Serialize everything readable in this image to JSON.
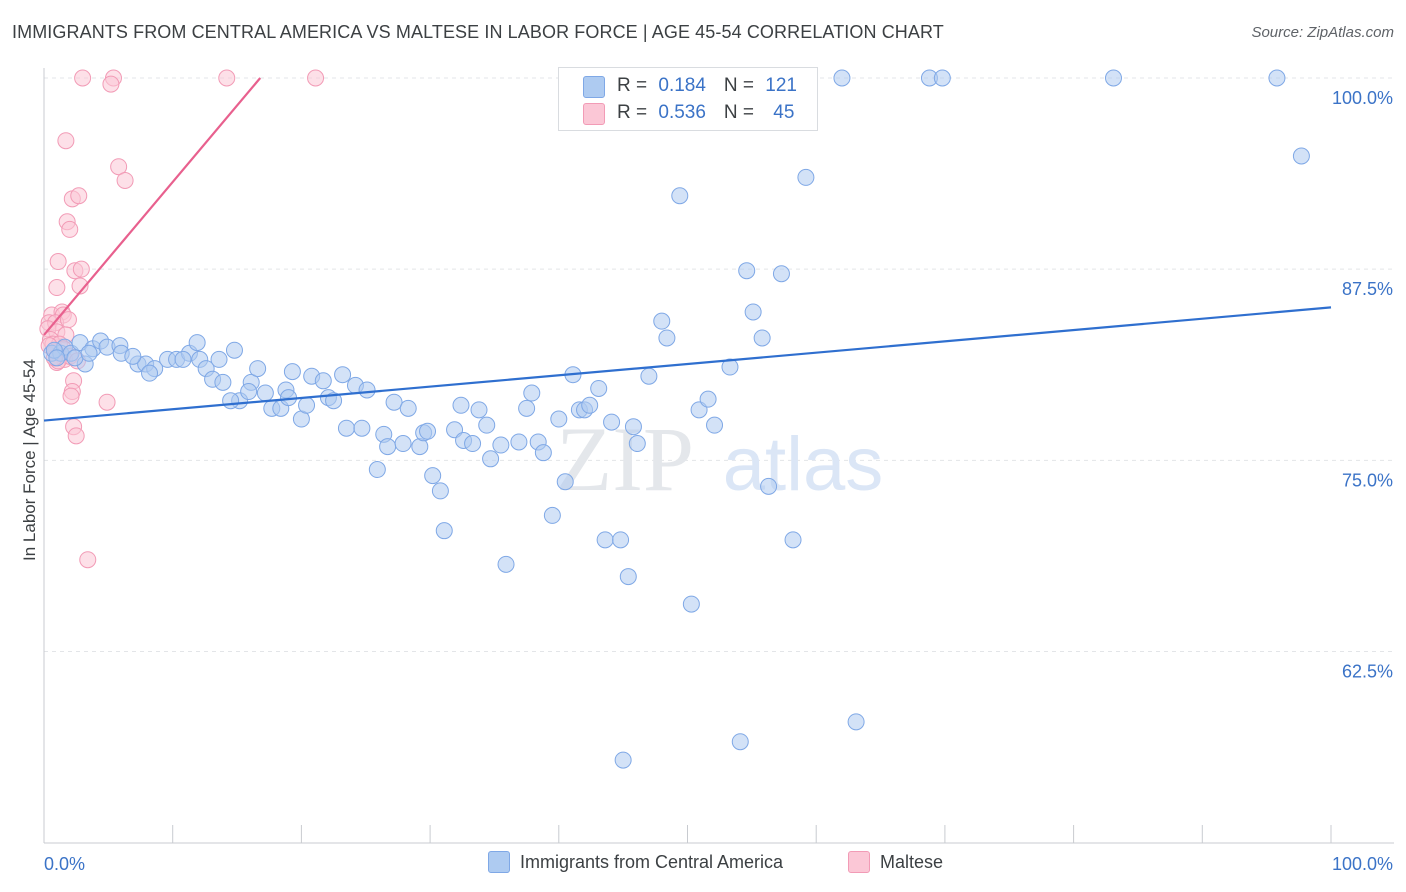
{
  "title": "IMMIGRANTS FROM CENTRAL AMERICA VS MALTESE IN LABOR FORCE | AGE 45-54 CORRELATION CHART",
  "source": "Source: ZipAtlas.com",
  "watermark": {
    "part1": "ZIP",
    "part2": "atlas"
  },
  "legend_top": {
    "rows": [
      {
        "r_label": "R = ",
        "r_value": "0.184",
        "n_label": "N = ",
        "n_value": "121",
        "color": "#7fa8e6"
      },
      {
        "r_label": "R = ",
        "r_value": "0.536",
        "n_label": "N = ",
        "n_value": "45",
        "color": "#f29bb6"
      }
    ]
  },
  "legend_bottom": [
    {
      "label": "Immigrants from Central America",
      "color": "#aecbf1",
      "border": "#7fa8e6"
    },
    {
      "label": "Maltese",
      "color": "#fbc7d6",
      "border": "#f29bb6"
    }
  ],
  "chart_data": {
    "type": "scatter",
    "title": "IMMIGRANTS FROM CENTRAL AMERICA VS MALTESE IN LABOR FORCE | AGE 45-54 CORRELATION CHART",
    "xlabel": "",
    "ylabel": "In Labor Force | Age 45-54",
    "xlim": [
      0,
      100
    ],
    "ylim": [
      50,
      100
    ],
    "x_tick_labels": [
      {
        "value": 0,
        "label": "0.0%"
      },
      {
        "value": 100,
        "label": "100.0%"
      }
    ],
    "y_tick_labels": [
      {
        "value": 100,
        "label": "100.0%"
      },
      {
        "value": 87.5,
        "label": "87.5%"
      },
      {
        "value": 75,
        "label": "75.0%"
      },
      {
        "value": 62.5,
        "label": "62.5%"
      }
    ],
    "grid": true,
    "colors": {
      "blue": "#7fa8e6",
      "blue_fill": "#aecbf1",
      "blue_line": "#2f6fcf",
      "pink": "#f29bb6",
      "pink_fill": "#fbc7d6",
      "pink_line": "#e8608e",
      "tick_label": "#3b73c7"
    },
    "series": [
      {
        "name": "Immigrants from Central America",
        "points": [
          [
            0.6,
            82
          ],
          [
            1.3,
            82
          ],
          [
            1.6,
            82.4
          ],
          [
            2.1,
            82
          ],
          [
            2.8,
            82.7
          ],
          [
            3.2,
            81.3
          ],
          [
            3.8,
            82.3
          ],
          [
            4.4,
            82.8
          ],
          [
            4.9,
            82.4
          ],
          [
            5.9,
            82.5
          ],
          [
            6.0,
            82
          ],
          [
            7.3,
            81.3
          ],
          [
            7.9,
            81.3
          ],
          [
            8.6,
            81
          ],
          [
            9.6,
            81.6
          ],
          [
            10.3,
            81.6
          ],
          [
            11.3,
            82
          ],
          [
            11.9,
            82.7
          ],
          [
            12.1,
            81.6
          ],
          [
            12.6,
            81
          ],
          [
            13.1,
            80.3
          ],
          [
            13.6,
            81.6
          ],
          [
            14.8,
            82.2
          ],
          [
            13.9,
            80.1
          ],
          [
            16.1,
            80.1
          ],
          [
            15.2,
            78.9
          ],
          [
            14.5,
            78.9
          ],
          [
            17.2,
            79.4
          ],
          [
            16.6,
            81
          ],
          [
            17.7,
            78.4
          ],
          [
            18.8,
            79.6
          ],
          [
            18.4,
            78.4
          ],
          [
            19.3,
            80.8
          ],
          [
            20.0,
            77.7
          ],
          [
            20.4,
            78.6
          ],
          [
            20.8,
            80.5
          ],
          [
            21.7,
            80.2
          ],
          [
            22.1,
            79.1
          ],
          [
            22.5,
            78.9
          ],
          [
            23.2,
            80.6
          ],
          [
            23.5,
            77.1
          ],
          [
            24.7,
            77.1
          ],
          [
            24.2,
            79.9
          ],
          [
            25.1,
            79.6
          ],
          [
            25.9,
            74.4
          ],
          [
            26.4,
            76.7
          ],
          [
            26.7,
            75.9
          ],
          [
            27.2,
            78.8
          ],
          [
            27.9,
            76.1
          ],
          [
            28.3,
            78.4
          ],
          [
            29.2,
            75.9
          ],
          [
            29.5,
            76.8
          ],
          [
            29.8,
            76.9
          ],
          [
            30.2,
            74
          ],
          [
            30.8,
            73
          ],
          [
            31.1,
            70.4
          ],
          [
            31.9,
            77
          ],
          [
            32.4,
            78.6
          ],
          [
            32.6,
            76.3
          ],
          [
            33.3,
            76.1
          ],
          [
            33.8,
            78.3
          ],
          [
            34.4,
            77.3
          ],
          [
            34.7,
            75.1
          ],
          [
            35.5,
            76
          ],
          [
            35.9,
            68.2
          ],
          [
            36.9,
            76.2
          ],
          [
            37.5,
            78.4
          ],
          [
            37.9,
            79.4
          ],
          [
            38.4,
            76.2
          ],
          [
            38.8,
            75.5
          ],
          [
            39.5,
            71.4
          ],
          [
            40.0,
            77.7
          ],
          [
            40.5,
            73.6
          ],
          [
            41.1,
            80.6
          ],
          [
            41.6,
            78.3
          ],
          [
            42.0,
            78.3
          ],
          [
            42.4,
            78.6
          ],
          [
            43.1,
            79.7
          ],
          [
            43.6,
            69.8
          ],
          [
            44.1,
            77.5
          ],
          [
            44.8,
            69.8
          ],
          [
            45.4,
            67.4
          ],
          [
            45.8,
            77.2
          ],
          [
            46.1,
            76.1
          ],
          [
            47.0,
            80.5
          ],
          [
            47.6,
            100
          ],
          [
            48.0,
            84.1
          ],
          [
            48.4,
            83
          ],
          [
            49.0,
            100
          ],
          [
            49.4,
            92.3
          ],
          [
            50.3,
            65.6
          ],
          [
            50.9,
            78.3
          ],
          [
            51.6,
            79
          ],
          [
            52.1,
            77.3
          ],
          [
            53.3,
            81.1
          ],
          [
            54.1,
            56.6
          ],
          [
            54.6,
            87.4
          ],
          [
            55.1,
            84.7
          ],
          [
            55.8,
            83
          ],
          [
            56.3,
            73.3
          ],
          [
            57.3,
            87.2
          ],
          [
            58.2,
            69.8
          ],
          [
            59.2,
            93.5
          ],
          [
            62.0,
            100
          ],
          [
            63.1,
            57.9
          ],
          [
            68.8,
            100
          ],
          [
            69.8,
            100
          ],
          [
            83.1,
            100
          ],
          [
            95.8,
            100
          ],
          [
            97.7,
            94.9
          ],
          [
            0.8,
            82.2
          ],
          [
            1.0,
            81.7
          ],
          [
            2.4,
            81.7
          ],
          [
            3.5,
            82
          ],
          [
            6.9,
            81.8
          ],
          [
            8.2,
            80.7
          ],
          [
            10.8,
            81.6
          ],
          [
            15.9,
            79.5
          ],
          [
            19.0,
            79.1
          ],
          [
            45.0,
            55.4
          ]
        ]
      },
      {
        "name": "Maltese",
        "points": [
          [
            3.0,
            100
          ],
          [
            5.4,
            100
          ],
          [
            5.2,
            99.6
          ],
          [
            14.2,
            100
          ],
          [
            21.1,
            100
          ],
          [
            1.7,
            95.9
          ],
          [
            5.8,
            94.2
          ],
          [
            6.3,
            93.3
          ],
          [
            2.2,
            92.1
          ],
          [
            2.7,
            92.3
          ],
          [
            1.8,
            90.6
          ],
          [
            2.0,
            90.1
          ],
          [
            1.1,
            88
          ],
          [
            2.4,
            87.4
          ],
          [
            2.9,
            87.5
          ],
          [
            1.0,
            86.3
          ],
          [
            2.8,
            86.4
          ],
          [
            0.6,
            84.5
          ],
          [
            1.4,
            84.7
          ],
          [
            1.5,
            84.5
          ],
          [
            0.4,
            84
          ],
          [
            0.9,
            84
          ],
          [
            1.9,
            84.2
          ],
          [
            0.3,
            83.6
          ],
          [
            1.0,
            83.4
          ],
          [
            1.7,
            83.2
          ],
          [
            0.5,
            82.9
          ],
          [
            0.7,
            82.6
          ],
          [
            1.2,
            82.6
          ],
          [
            1.5,
            82.3
          ],
          [
            0.9,
            82.1
          ],
          [
            1.6,
            81.6
          ],
          [
            1.0,
            81.4
          ],
          [
            2.0,
            81.8
          ],
          [
            1.1,
            81.5
          ],
          [
            0.8,
            81.7
          ],
          [
            2.6,
            81.5
          ],
          [
            2.3,
            80.2
          ],
          [
            2.2,
            79.5
          ],
          [
            2.1,
            79.2
          ],
          [
            4.9,
            78.8
          ],
          [
            2.3,
            77.2
          ],
          [
            2.5,
            76.6
          ],
          [
            3.4,
            68.5
          ],
          [
            0.4,
            82.5
          ]
        ]
      }
    ],
    "trend_lines": [
      {
        "series": "Immigrants from Central America",
        "x": [
          0,
          100
        ],
        "y": [
          77.6,
          85.0
        ]
      },
      {
        "series": "Maltese",
        "x": [
          0,
          16.8
        ],
        "y": [
          83.2,
          100
        ]
      }
    ]
  }
}
